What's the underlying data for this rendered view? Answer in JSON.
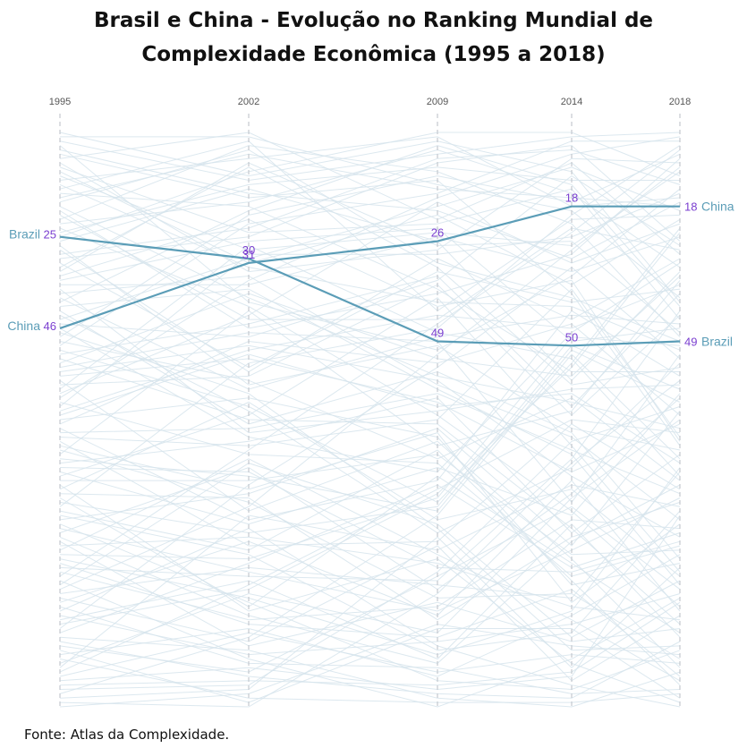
{
  "title": {
    "line1": "Brasil e China - Evolução no Ranking Mundial de",
    "line2": "Complexidade Econômica (1995 a 2018)"
  },
  "source": "Fonte: Atlas da Complexidade.",
  "colors": {
    "highlight_line": "#5b9db7",
    "rank_label": "#7b3fd0",
    "country_label": "#5b9db7",
    "background_lines": "#d6e4ec",
    "year_guides": "#c4c9cf",
    "year_text": "#555555"
  },
  "chart_data": {
    "type": "line",
    "x": [
      "1995",
      "2002",
      "2009",
      "2014",
      "2018"
    ],
    "ylim": [
      1,
      133
    ],
    "y_inverted": true,
    "grid": false,
    "series": [
      {
        "name": "Brazil",
        "values": [
          25,
          30,
          49,
          50,
          49
        ]
      },
      {
        "name": "China",
        "values": [
          46,
          31,
          26,
          18,
          18
        ]
      }
    ]
  }
}
